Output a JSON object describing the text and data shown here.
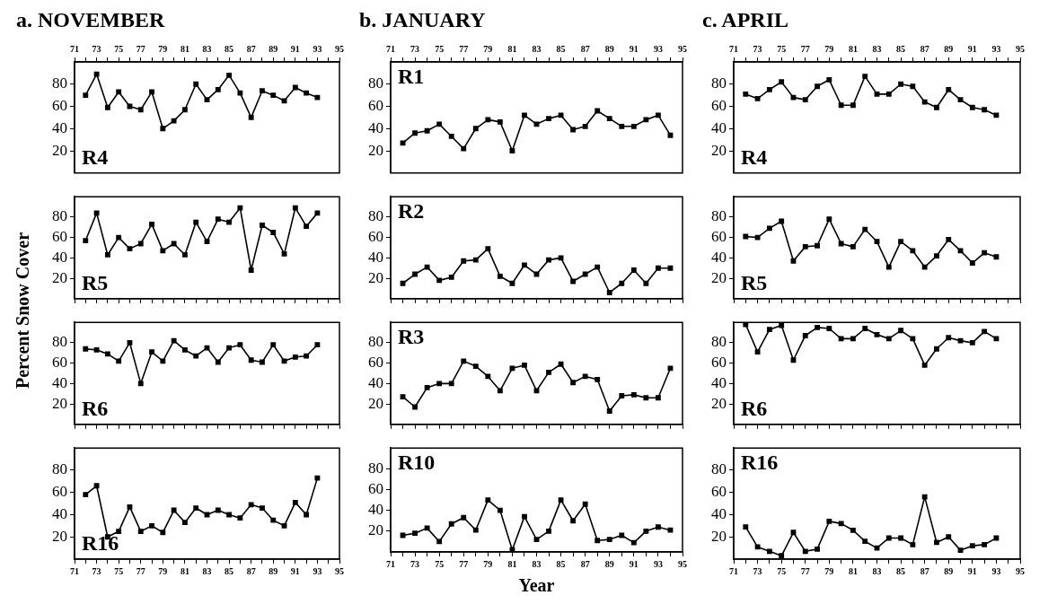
{
  "chart_data": [
    {
      "type": "line",
      "title": "a. NOVEMBER",
      "annotations": [
        "R4"
      ],
      "x": [
        72,
        73,
        74,
        75,
        76,
        77,
        78,
        79,
        80,
        81,
        82,
        83,
        84,
        85,
        86,
        87,
        88,
        89,
        90,
        91,
        92,
        93
      ],
      "values": [
        70,
        89,
        59,
        73,
        60,
        57,
        73,
        40,
        47,
        57,
        80,
        66,
        75,
        88,
        72,
        50,
        74,
        70,
        65,
        77,
        72,
        68
      ],
      "color": "#000000",
      "marker": "square",
      "xlim": [
        71,
        95
      ],
      "xticks": [
        71,
        {
          "value": 72,
          "label": null
        },
        73,
        {
          "value": 74,
          "label": null
        },
        75,
        {
          "value": 76,
          "label": null
        },
        77,
        {
          "value": 78,
          "label": null
        },
        79,
        {
          "value": 80,
          "label": null
        },
        81,
        {
          "value": 82,
          "label": null
        },
        83,
        {
          "value": 84,
          "label": null
        },
        85,
        {
          "value": 86,
          "label": null
        },
        87,
        {
          "value": 88,
          "label": null
        },
        89,
        {
          "value": 90,
          "label": null
        },
        91,
        {
          "value": 92,
          "label": null
        },
        93,
        {
          "value": 94,
          "label": null
        },
        95
      ],
      "ylim": [
        0,
        100
      ],
      "yticks": [
        20,
        40,
        60,
        80
      ]
    },
    {
      "type": "line",
      "ylabel": "Percent Snow Cover",
      "annotations": [
        "R5"
      ],
      "x": [
        72,
        73,
        74,
        75,
        76,
        77,
        78,
        79,
        80,
        81,
        82,
        83,
        84,
        85,
        86,
        87,
        88,
        89,
        90,
        91,
        92,
        93
      ],
      "values": [
        57,
        84,
        43,
        60,
        49,
        54,
        73,
        47,
        54,
        43,
        75,
        56,
        78,
        75,
        89,
        28,
        72,
        65,
        44,
        89,
        71,
        84
      ],
      "color": "#000000",
      "marker": "square",
      "xlim": [
        71,
        95
      ],
      "xticks": [
        71,
        72,
        73,
        74,
        75,
        76,
        77,
        78,
        79,
        80,
        81,
        82,
        83,
        84,
        85,
        86,
        87,
        88,
        89,
        90,
        91,
        92,
        93,
        94,
        95
      ],
      "ylim": [
        0,
        100
      ],
      "yticks": [
        20,
        40,
        60,
        80
      ],
      "tick_labels": "y"
    },
    {
      "type": "line",
      "annotations": [
        "R6"
      ],
      "x": [
        72,
        73,
        74,
        75,
        76,
        77,
        78,
        79,
        80,
        81,
        82,
        83,
        84,
        85,
        86,
        87,
        88,
        89,
        90,
        91,
        92,
        93
      ],
      "values": [
        74,
        73,
        69,
        62,
        80,
        40,
        71,
        62,
        82,
        73,
        67,
        75,
        61,
        75,
        78,
        63,
        61,
        78,
        62,
        66,
        67,
        78
      ],
      "color": "#000000",
      "marker": "square",
      "xlim": [
        71,
        95
      ],
      "xticks": [
        71,
        72,
        73,
        74,
        75,
        76,
        77,
        78,
        79,
        80,
        81,
        82,
        83,
        84,
        85,
        86,
        87,
        88,
        89,
        90,
        91,
        92,
        93,
        94,
        95
      ],
      "ylim": [
        0,
        100
      ],
      "yticks": [
        20,
        40,
        60,
        80
      ],
      "tick_labels": "y"
    },
    {
      "type": "line",
      "annotations": [
        "R16"
      ],
      "x": [
        72,
        73,
        74,
        75,
        76,
        77,
        78,
        79,
        80,
        81,
        82,
        83,
        84,
        85,
        86,
        87,
        88,
        89,
        90,
        91,
        92,
        93
      ],
      "values": [
        58,
        66,
        20,
        25,
        47,
        25,
        30,
        24,
        44,
        33,
        46,
        40,
        44,
        40,
        37,
        49,
        46,
        35,
        30,
        51,
        40,
        73
      ],
      "color": "#000000",
      "marker": "square",
      "xlim": [
        71,
        95
      ],
      "xticks": [
        71,
        {
          "value": 72,
          "label": null
        },
        73,
        {
          "value": 74,
          "label": null
        },
        75,
        {
          "value": 76,
          "label": null
        },
        77,
        {
          "value": 78,
          "label": null
        },
        79,
        {
          "value": 80,
          "label": null
        },
        81,
        {
          "value": 82,
          "label": null
        },
        83,
        {
          "value": 84,
          "label": null
        },
        85,
        {
          "value": 86,
          "label": null
        },
        87,
        {
          "value": 88,
          "label": null
        },
        89,
        {
          "value": 90,
          "label": null
        },
        91,
        {
          "value": 92,
          "label": null
        },
        93,
        {
          "value": 94,
          "label": null
        },
        95
      ],
      "ylim": [
        0,
        100
      ],
      "yticks": [
        20,
        40,
        60,
        80
      ]
    },
    {
      "type": "line",
      "title": "b. JANUARY",
      "annotations": [
        "R1"
      ],
      "x": [
        72,
        73,
        74,
        75,
        76,
        77,
        78,
        79,
        80,
        81,
        82,
        83,
        84,
        85,
        86,
        87,
        88,
        89,
        90,
        91,
        92,
        93,
        94
      ],
      "values": [
        27,
        36,
        38,
        44,
        33,
        22,
        40,
        48,
        46,
        20,
        52,
        44,
        49,
        52,
        39,
        42,
        56,
        49,
        42,
        42,
        48,
        52,
        34
      ],
      "color": "#000000",
      "marker": "square",
      "xlim": [
        71,
        95
      ],
      "xticks": [
        71,
        {
          "value": 72,
          "label": null
        },
        73,
        {
          "value": 74,
          "label": null
        },
        75,
        {
          "value": 76,
          "label": null
        },
        77,
        {
          "value": 78,
          "label": null
        },
        79,
        {
          "value": 80,
          "label": null
        },
        81,
        {
          "value": 82,
          "label": null
        },
        83,
        {
          "value": 84,
          "label": null
        },
        85,
        {
          "value": 86,
          "label": null
        },
        87,
        {
          "value": 88,
          "label": null
        },
        89,
        {
          "value": 90,
          "label": null
        },
        91,
        {
          "value": 92,
          "label": null
        },
        93,
        {
          "value": 94,
          "label": null
        },
        95
      ],
      "ylim": [
        0,
        100
      ],
      "yticks": [
        20,
        40,
        60,
        80
      ]
    },
    {
      "type": "line",
      "annotations": [
        "R2"
      ],
      "x": [
        72,
        73,
        74,
        75,
        76,
        77,
        78,
        79,
        80,
        81,
        82,
        83,
        84,
        85,
        86,
        87,
        88,
        89,
        90,
        91,
        92,
        93,
        94
      ],
      "values": [
        15,
        24,
        31,
        18,
        21,
        37,
        38,
        49,
        22,
        15,
        33,
        24,
        38,
        40,
        17,
        24,
        31,
        6,
        15,
        28,
        15,
        30,
        30
      ],
      "color": "#000000",
      "marker": "square",
      "xlim": [
        71,
        95
      ],
      "xticks": [
        71,
        72,
        73,
        74,
        75,
        76,
        77,
        78,
        79,
        80,
        81,
        82,
        83,
        84,
        85,
        86,
        87,
        88,
        89,
        90,
        91,
        92,
        93,
        94,
        95
      ],
      "ylim": [
        0,
        100
      ],
      "yticks": [
        20,
        40,
        60,
        80
      ],
      "tick_labels": "y"
    },
    {
      "type": "line",
      "annotations": [
        "R3"
      ],
      "x": [
        72,
        73,
        74,
        75,
        76,
        77,
        78,
        79,
        80,
        81,
        82,
        83,
        84,
        85,
        86,
        87,
        88,
        89,
        90,
        91,
        92,
        93,
        94
      ],
      "values": [
        27,
        17,
        36,
        40,
        40,
        62,
        57,
        47,
        33,
        55,
        58,
        33,
        51,
        59,
        41,
        47,
        44,
        13,
        28,
        29,
        26,
        26,
        55
      ],
      "color": "#000000",
      "marker": "square",
      "xlim": [
        71,
        95
      ],
      "xticks": [
        71,
        72,
        73,
        74,
        75,
        76,
        77,
        78,
        79,
        80,
        81,
        82,
        83,
        84,
        85,
        86,
        87,
        88,
        89,
        90,
        91,
        92,
        93,
        94,
        95
      ],
      "ylim": [
        0,
        100
      ],
      "yticks": [
        20,
        40,
        60,
        80
      ],
      "tick_labels": "y"
    },
    {
      "type": "line",
      "xlabel": "Year",
      "annotations": [
        "R10"
      ],
      "x": [
        72,
        73,
        74,
        75,
        76,
        77,
        78,
        79,
        80,
        81,
        82,
        83,
        84,
        85,
        86,
        87,
        88,
        89,
        90,
        91,
        92,
        93,
        94
      ],
      "values": [
        16,
        18,
        23,
        10,
        27,
        33,
        21,
        50,
        40,
        2,
        34,
        12,
        20,
        50,
        30,
        46,
        11,
        12,
        16,
        9,
        20,
        24,
        21
      ],
      "color": "#000000",
      "marker": "square",
      "xlim": [
        71,
        95
      ],
      "xticks": [
        71,
        {
          "value": 72,
          "label": null
        },
        73,
        {
          "value": 74,
          "label": null
        },
        75,
        {
          "value": 76,
          "label": null
        },
        77,
        {
          "value": 78,
          "label": null
        },
        79,
        {
          "value": 80,
          "label": null
        },
        81,
        {
          "value": 82,
          "label": null
        },
        83,
        {
          "value": 84,
          "label": null
        },
        85,
        {
          "value": 86,
          "label": null
        },
        87,
        {
          "value": 88,
          "label": null
        },
        89,
        {
          "value": 90,
          "label": null
        },
        91,
        {
          "value": 92,
          "label": null
        },
        93,
        {
          "value": 94,
          "label": null
        },
        95
      ],
      "ylim": [
        0,
        100
      ],
      "yticks": [
        20,
        40,
        60,
        80
      ]
    },
    {
      "type": "line",
      "title": "c. APRIL",
      "annotations": [
        "R4"
      ],
      "x": [
        72,
        73,
        74,
        75,
        76,
        77,
        78,
        79,
        80,
        81,
        82,
        83,
        84,
        85,
        86,
        87,
        88,
        89,
        90,
        91,
        92,
        93
      ],
      "values": [
        71,
        67,
        75,
        82,
        68,
        66,
        78,
        84,
        61,
        61,
        87,
        71,
        71,
        80,
        78,
        64,
        59,
        75,
        66,
        59,
        57,
        52
      ],
      "color": "#000000",
      "marker": "square",
      "xlim": [
        71,
        95
      ],
      "xticks": [
        71,
        {
          "value": 72,
          "label": null
        },
        73,
        {
          "value": 74,
          "label": null
        },
        75,
        {
          "value": 76,
          "label": null
        },
        77,
        {
          "value": 78,
          "label": null
        },
        79,
        {
          "value": 80,
          "label": null
        },
        81,
        {
          "value": 82,
          "label": null
        },
        83,
        {
          "value": 84,
          "label": null
        },
        85,
        {
          "value": 86,
          "label": null
        },
        87,
        {
          "value": 88,
          "label": null
        },
        89,
        {
          "value": 90,
          "label": null
        },
        91,
        {
          "value": 92,
          "label": null
        },
        93,
        {
          "value": 94,
          "label": null
        },
        95
      ],
      "ylim": [
        0,
        100
      ],
      "yticks": [
        20,
        40,
        60,
        80
      ]
    },
    {
      "type": "line",
      "annotations": [
        "R5"
      ],
      "x": [
        72,
        73,
        74,
        75,
        76,
        77,
        78,
        79,
        80,
        81,
        82,
        83,
        84,
        85,
        86,
        87,
        88,
        89,
        90,
        91,
        92,
        93
      ],
      "values": [
        61,
        60,
        69,
        76,
        37,
        51,
        52,
        78,
        54,
        51,
        68,
        56,
        31,
        56,
        47,
        31,
        42,
        58,
        47,
        35,
        45,
        41
      ],
      "color": "#000000",
      "marker": "square",
      "xlim": [
        71,
        95
      ],
      "xticks": [
        71,
        72,
        73,
        74,
        75,
        76,
        77,
        78,
        79,
        80,
        81,
        82,
        83,
        84,
        85,
        86,
        87,
        88,
        89,
        90,
        91,
        92,
        93,
        94,
        95
      ],
      "ylim": [
        0,
        100
      ],
      "yticks": [
        20,
        40,
        60,
        80
      ],
      "tick_labels": "y"
    },
    {
      "type": "line",
      "annotations": [
        "R6"
      ],
      "x": [
        72,
        73,
        74,
        75,
        76,
        77,
        78,
        79,
        80,
        81,
        82,
        83,
        84,
        85,
        86,
        87,
        88,
        89,
        90,
        91,
        92,
        93
      ],
      "values": [
        98,
        71,
        93,
        97,
        63,
        87,
        95,
        94,
        84,
        84,
        94,
        88,
        84,
        92,
        84,
        58,
        74,
        85,
        82,
        80,
        91,
        84
      ],
      "color": "#000000",
      "marker": "square",
      "xlim": [
        71,
        95
      ],
      "xticks": [
        71,
        72,
        73,
        74,
        75,
        76,
        77,
        78,
        79,
        80,
        81,
        82,
        83,
        84,
        85,
        86,
        87,
        88,
        89,
        90,
        91,
        92,
        93,
        94,
        95
      ],
      "ylim": [
        0,
        100
      ],
      "yticks": [
        20,
        40,
        60,
        80
      ],
      "tick_labels": "y"
    },
    {
      "type": "line",
      "annotations": [
        "R16"
      ],
      "x": [
        72,
        73,
        74,
        75,
        76,
        77,
        78,
        79,
        80,
        81,
        82,
        83,
        84,
        85,
        86,
        87,
        88,
        89,
        90,
        91,
        92,
        93
      ],
      "values": [
        29,
        11,
        7,
        3,
        24,
        7,
        9,
        34,
        32,
        26,
        16,
        10,
        19,
        19,
        13,
        56,
        15,
        20,
        8,
        12,
        13,
        19
      ],
      "color": "#000000",
      "marker": "square",
      "xlim": [
        71,
        95
      ],
      "xticks": [
        71,
        {
          "value": 72,
          "label": null
        },
        73,
        {
          "value": 74,
          "label": null
        },
        75,
        {
          "value": 76,
          "label": null
        },
        77,
        {
          "value": 78,
          "label": null
        },
        79,
        {
          "value": 80,
          "label": null
        },
        81,
        {
          "value": 82,
          "label": null
        },
        83,
        {
          "value": 84,
          "label": null
        },
        85,
        {
          "value": 86,
          "label": null
        },
        87,
        {
          "value": 88,
          "label": null
        },
        89,
        {
          "value": 90,
          "label": null
        },
        91,
        {
          "value": 92,
          "label": null
        },
        93,
        {
          "value": 94,
          "label": null
        },
        95
      ],
      "ylim": [
        0,
        100
      ],
      "yticks": [
        20,
        40,
        60,
        80
      ]
    }
  ]
}
